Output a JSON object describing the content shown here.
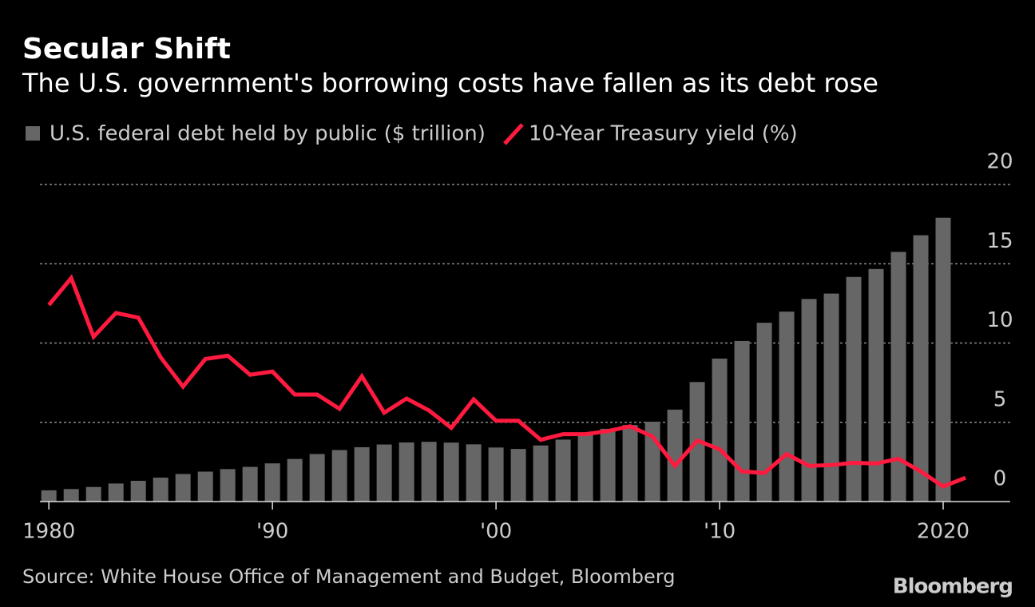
{
  "chart_data": {
    "type": "combo",
    "title": "Secular Shift",
    "subtitle": "The U.S. government's borrowing costs have fallen as its debt rose",
    "source": "Source: White House Office of Management and Budget, Bloomberg",
    "brand": "Bloomberg",
    "x": [
      1980,
      1981,
      1982,
      1983,
      1984,
      1985,
      1986,
      1987,
      1988,
      1989,
      1990,
      1991,
      1992,
      1993,
      1994,
      1995,
      1996,
      1997,
      1998,
      1999,
      2000,
      2001,
      2002,
      2003,
      2004,
      2005,
      2006,
      2007,
      2008,
      2009,
      2010,
      2011,
      2012,
      2013,
      2014,
      2015,
      2016,
      2017,
      2018,
      2019,
      2020,
      2021
    ],
    "series": [
      {
        "name": "U.S. federal debt held by public ($ trillion)",
        "type": "bar",
        "color": "#666666",
        "values": [
          0.71,
          0.79,
          0.92,
          1.14,
          1.31,
          1.51,
          1.74,
          1.89,
          2.05,
          2.19,
          2.41,
          2.69,
          3.0,
          3.25,
          3.43,
          3.6,
          3.73,
          3.77,
          3.72,
          3.61,
          3.41,
          3.32,
          3.54,
          3.91,
          4.3,
          4.59,
          4.83,
          5.04,
          5.8,
          7.54,
          9.02,
          10.13,
          11.28,
          11.98,
          12.78,
          13.12,
          14.17,
          14.67,
          15.75,
          16.8,
          17.9,
          null
        ]
      },
      {
        "name": "10-Year Treasury yield (%)",
        "type": "line",
        "color": "#ff1a40",
        "values": [
          12.4,
          14.1,
          10.4,
          11.9,
          11.6,
          9.1,
          7.25,
          9.0,
          9.2,
          8.0,
          8.2,
          6.75,
          6.75,
          5.85,
          7.9,
          5.6,
          6.5,
          5.75,
          4.65,
          6.45,
          5.1,
          5.1,
          3.9,
          4.25,
          4.25,
          4.45,
          4.75,
          4.1,
          2.25,
          3.85,
          3.3,
          1.9,
          1.8,
          3.0,
          2.25,
          2.3,
          2.45,
          2.4,
          2.7,
          1.9,
          0.95,
          1.5
        ]
      }
    ],
    "xlim": [
      1979.6,
      2023
    ],
    "xticks": [
      1980,
      {
        "value": 1990,
        "label": "'90"
      },
      {
        "value": 2000,
        "label": "'00"
      },
      {
        "value": 2010,
        "label": "'10"
      },
      2020
    ],
    "ylim": [
      0,
      20
    ],
    "yticks": [
      0,
      5,
      10,
      15,
      20
    ],
    "grid": true
  }
}
